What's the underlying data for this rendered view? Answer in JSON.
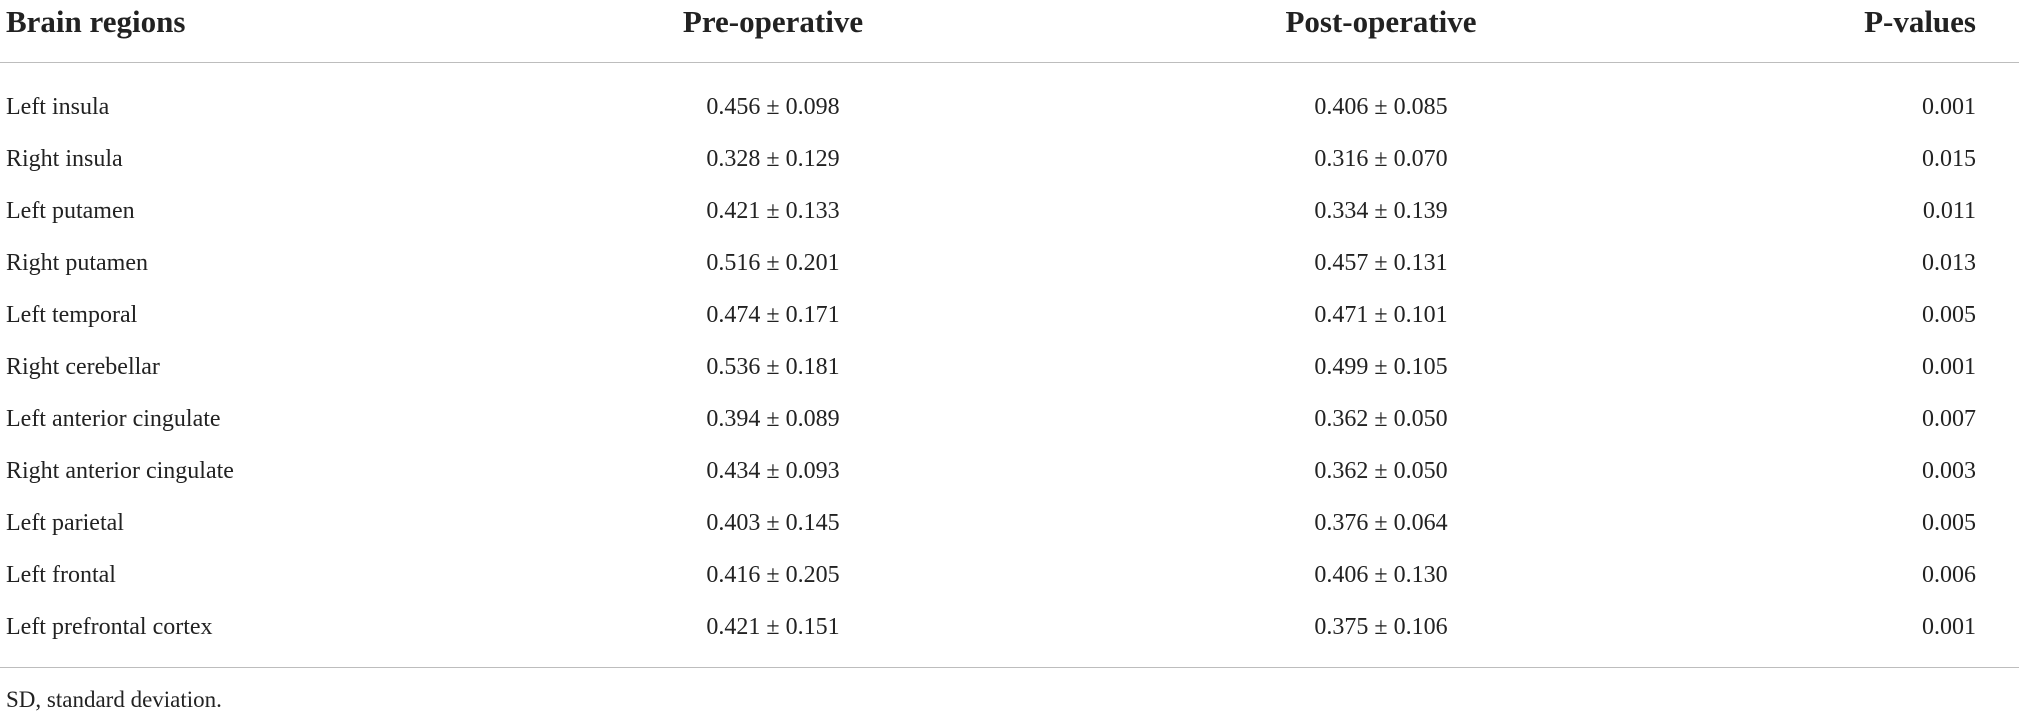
{
  "table": {
    "header": [
      "Brain regions",
      "Pre-operative",
      "Post-operative",
      "P-values"
    ],
    "rows": [
      [
        "Left insula",
        "0.456 ± 0.098",
        "0.406 ± 0.085",
        "0.001"
      ],
      [
        "Right insula",
        "0.328 ± 0.129",
        "0.316 ± 0.070",
        "0.015"
      ],
      [
        "Left putamen",
        "0.421 ± 0.133",
        "0.334 ± 0.139",
        "0.011"
      ],
      [
        "Right putamen",
        "0.516 ± 0.201",
        "0.457 ± 0.131",
        "0.013"
      ],
      [
        "Left temporal",
        "0.474 ± 0.171",
        "0.471 ± 0.101",
        "0.005"
      ],
      [
        "Right cerebellar",
        "0.536 ± 0.181",
        "0.499 ± 0.105",
        "0.001"
      ],
      [
        "Left anterior cingulate",
        "0.394 ± 0.089",
        "0.362 ± 0.050",
        "0.007"
      ],
      [
        "Right anterior cingulate",
        "0.434 ± 0.093",
        "0.362 ± 0.050",
        "0.003"
      ],
      [
        "Left parietal",
        "0.403 ± 0.145",
        "0.376 ± 0.064",
        "0.005"
      ],
      [
        "Left frontal",
        "0.416 ± 0.205",
        "0.406 ± 0.130",
        "0.006"
      ],
      [
        "Left prefrontal cortex",
        "0.421 ± 0.151",
        "0.375 ± 0.106",
        "0.001"
      ]
    ],
    "footnote": "SD, standard deviation."
  }
}
